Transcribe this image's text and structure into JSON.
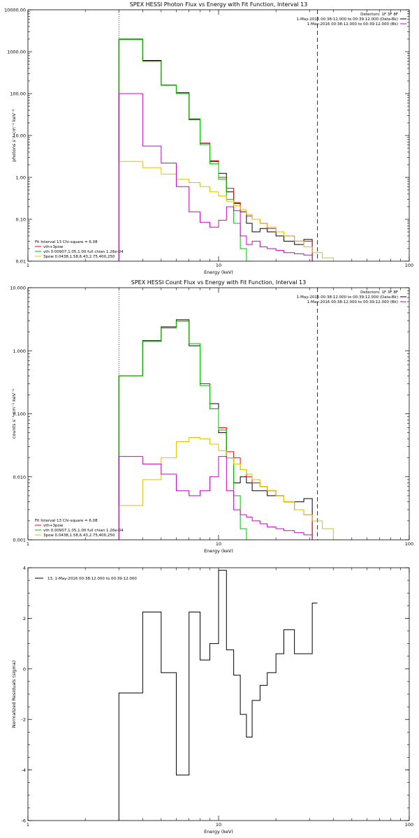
{
  "chart_data": [
    {
      "id": "photon",
      "type": "line",
      "title": "SPEX HESSI Photon Flux vs Energy with Fit Function, Interval 13",
      "xlabel": "Energy (keV)",
      "ylabel": "photons s⁻¹ cm⁻² keV⁻¹",
      "xscale": "log",
      "yscale": "log",
      "xlim": [
        1,
        100
      ],
      "ylim": [
        0.01,
        10000
      ],
      "xticks": [
        {
          "v": 1,
          "label": "1"
        },
        {
          "v": 10,
          "label": "10"
        },
        {
          "v": 100,
          "label": "100"
        }
      ],
      "yticks": [
        {
          "v": 0.01,
          "label": "0.01"
        },
        {
          "v": 0.1,
          "label": "0.10"
        },
        {
          "v": 1,
          "label": "1.00"
        },
        {
          "v": 10,
          "label": "10.00"
        },
        {
          "v": 100,
          "label": "100.00"
        },
        {
          "v": 1000,
          "label": "1000.00"
        },
        {
          "v": 10000,
          "label": "10000.00"
        }
      ],
      "vlines": [
        {
          "x": 3.0,
          "style": "dotted"
        },
        {
          "x": 33.0,
          "style": "dashed"
        }
      ],
      "legend_tr": [
        {
          "text": "Detectors: 1F 3F 8F",
          "color": "#000000"
        },
        {
          "text": "1-May-2016 00:38:12.000 to 00:39:12.000 (Data-Bk)",
          "color": "#000000"
        },
        {
          "text": "1-May-2016 00:38:12.000 to 00:39:12.000 (Bk)",
          "color": "#cc00cc"
        }
      ],
      "legend_bl": [
        {
          "text": "Fit Interval 13   Chi-square = 6.08",
          "color": "#000000"
        },
        {
          "text": "vth+3pow",
          "color": "#e8000b"
        },
        {
          "text": "vth 0.00907,1.05,1.00  full chian 1.26e-04",
          "color": "#00c000"
        },
        {
          "text": "3pow 0.0438,1.58,6.43,2.75,400,250",
          "color": "#e0c000"
        }
      ],
      "edges": [
        3.0,
        4.0,
        5.0,
        6.0,
        7.0,
        8.0,
        9.0,
        10.0,
        11.0,
        12.0,
        13.0,
        14.0,
        15.0,
        16.5,
        18.0,
        20.0,
        22.0,
        25.0,
        28.0,
        31.0,
        35.0,
        40.0
      ],
      "series": [
        {
          "color": "#000000",
          "values": [
            2000,
            620,
            160,
            105,
            24,
            6.5,
            2.4,
            1.25,
            0.45,
            0.24,
            0.15,
            0.08,
            0.05,
            0.06,
            0.05,
            0.04,
            0.03,
            0.025,
            0.033
          ]
        },
        {
          "color": "#e8000b",
          "values": [
            1950,
            590,
            158,
            100,
            25,
            6.6,
            2.5,
            1.0,
            0.55,
            0.25,
            0.15,
            0.12,
            0.1,
            0.08,
            0.06,
            0.05,
            0.04,
            0.03,
            0.03
          ]
        },
        {
          "color": "#00c000",
          "values": [
            1950,
            590,
            158,
            100,
            25,
            6.0,
            2.1,
            0.9,
            0.3,
            0.08,
            0.02,
            0.008
          ]
        },
        {
          "color": "#e0c000",
          "values": [
            2.4,
            1.7,
            1.2,
            0.9,
            0.75,
            0.6,
            0.45,
            0.36,
            0.27,
            0.21,
            0.17,
            0.13,
            0.1,
            0.08,
            0.065,
            0.05,
            0.04,
            0.03,
            0.022,
            0.016,
            0.012
          ]
        },
        {
          "color": "#cc00cc",
          "values": [
            100,
            5.6,
            2.2,
            0.6,
            0.15,
            0.085,
            0.065,
            0.095,
            0.2,
            0.16,
            0.04,
            0.025,
            0.03,
            0.022,
            0.02,
            0.018,
            0.016,
            0.015,
            0.014
          ]
        }
      ]
    },
    {
      "id": "count",
      "type": "line",
      "title": "SPEX HESSI Count Flux vs Energy with Fit Function, Interval 13",
      "xlabel": "Energy (keV)",
      "ylabel": "counts s⁻¹ cm⁻² keV⁻¹",
      "xscale": "log",
      "yscale": "log",
      "xlim": [
        1,
        100
      ],
      "ylim": [
        0.001,
        10
      ],
      "xticks": [
        {
          "v": 1,
          "label": "1"
        },
        {
          "v": 10,
          "label": "10"
        },
        {
          "v": 100,
          "label": "100"
        }
      ],
      "yticks": [
        {
          "v": 0.001,
          "label": "0.001"
        },
        {
          "v": 0.01,
          "label": "0.010"
        },
        {
          "v": 0.1,
          "label": "0.100"
        },
        {
          "v": 1,
          "label": "1.000"
        },
        {
          "v": 10,
          "label": "10.000"
        }
      ],
      "vlines": [
        {
          "x": 3.0,
          "style": "dotted"
        },
        {
          "x": 33.0,
          "style": "dashed"
        }
      ],
      "legend_tr": [
        {
          "text": "Detectors: 1F 3F 8F",
          "color": "#000000"
        },
        {
          "text": "1-May-2016 00:38:12.000 to 00:39:12.000 (Data-Bk)",
          "color": "#000000"
        },
        {
          "text": "1-May-2016 00:38:12.000 to 00:39:12.000 (Bk)",
          "color": "#cc00cc"
        }
      ],
      "legend_bl": [
        {
          "text": "Fit Interval 13   Chi-square = 6.08",
          "color": "#000000"
        },
        {
          "text": "vth+3pow",
          "color": "#e8000b"
        },
        {
          "text": "vth 0.00907,1.05,1.00  full chian 1.26e-04",
          "color": "#00c000"
        },
        {
          "text": "3pow 0.0438,1.58,6.43,2.75,400,250",
          "color": "#e0c000"
        }
      ],
      "edges": [
        3.0,
        4.0,
        5.0,
        6.0,
        7.0,
        8.0,
        9.0,
        10.0,
        11.0,
        12.0,
        13.0,
        14.0,
        15.0,
        16.5,
        18.0,
        20.0,
        22.0,
        25.0,
        28.0,
        31.0,
        35.0,
        40.0,
        45.0
      ],
      "series": [
        {
          "color": "#000000",
          "values": [
            0.4,
            1.45,
            2.4,
            3.1,
            1.2,
            0.3,
            0.145,
            0.05,
            0.02,
            0.008,
            0.01,
            0.008,
            0.006,
            0.006,
            0.005,
            0.005,
            0.004,
            0.004,
            0.0045
          ]
        },
        {
          "color": "#e8000b",
          "values": [
            0.4,
            1.4,
            2.3,
            2.95,
            1.3,
            0.3,
            0.12,
            0.06,
            0.025,
            0.02,
            0.013,
            0.01,
            0.008,
            0.007,
            0.006,
            0.005,
            0.004,
            0.003,
            0.0025
          ]
        },
        {
          "color": "#00c000",
          "values": [
            0.4,
            1.4,
            2.3,
            2.95,
            1.3,
            0.28,
            0.12,
            0.055,
            0.02,
            0.005,
            0.0015,
            0.0007
          ]
        },
        {
          "color": "#e0c000",
          "values": [
            0.0035,
            0.009,
            0.02,
            0.036,
            0.042,
            0.04,
            0.033,
            0.026,
            0.02,
            0.016,
            0.013,
            0.011,
            0.009,
            0.007,
            0.006,
            0.005,
            0.004,
            0.003,
            0.0025,
            0.002,
            0.0015,
            0.001
          ]
        },
        {
          "color": "#cc00cc",
          "values": [
            0.021,
            0.016,
            0.011,
            0.006,
            0.005,
            0.006,
            0.01,
            0.021,
            0.006,
            0.003,
            0.0025,
            0.0023,
            0.002,
            0.0018,
            0.0016,
            0.0015,
            0.0014,
            0.0013,
            0.0012
          ]
        }
      ]
    },
    {
      "id": "resid",
      "type": "line",
      "title": "",
      "xlabel": "Energy (keV)",
      "ylabel": "Normalized Residuals (sigma)",
      "xscale": "log",
      "yscale": "linear",
      "xlim": [
        1,
        100
      ],
      "ylim": [
        -6,
        4
      ],
      "xticks": [
        {
          "v": 1,
          "label": "1"
        },
        {
          "v": 10,
          "label": "10"
        },
        {
          "v": 100,
          "label": "100"
        }
      ],
      "yticks": [
        {
          "v": -6,
          "label": "-6"
        },
        {
          "v": -4,
          "label": "-4"
        },
        {
          "v": -2,
          "label": "-2"
        },
        {
          "v": 0,
          "label": "0"
        },
        {
          "v": 2,
          "label": "2"
        },
        {
          "v": 4,
          "label": "4"
        }
      ],
      "vlines": [],
      "legend_tr": [],
      "legend_tl": [
        {
          "text": "13.  1-May-2016 00:38:12.000 to 00:39:12.000",
          "color": "#000000"
        }
      ],
      "legend_bl": [],
      "edges": [
        3.0,
        4.0,
        5.0,
        6.0,
        7.0,
        8.0,
        9.0,
        10.0,
        11.0,
        12.0,
        13.0,
        14.0,
        15.0,
        16.5,
        18.0,
        20.0,
        22.0,
        25.0,
        28.0,
        31.0,
        33.0
      ],
      "series": [
        {
          "color": "#000000",
          "values": [
            -0.95,
            2.25,
            -0.15,
            -4.2,
            2.25,
            0.35,
            1.0,
            3.9,
            0.75,
            -0.25,
            -1.8,
            -2.7,
            -1.25,
            -0.65,
            -0.15,
            0.6,
            1.55,
            0.6,
            0.6,
            2.6
          ]
        }
      ]
    }
  ]
}
